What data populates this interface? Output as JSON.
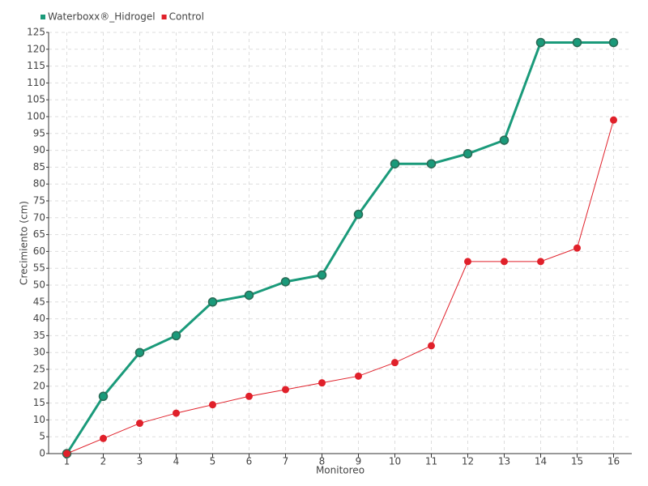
{
  "chart_data": {
    "type": "line",
    "x_label": "Monitoreo",
    "y_label": "Crecimiento (cm)",
    "categories": [
      "1",
      "2",
      "3",
      "4",
      "5",
      "6",
      "7",
      "8",
      "9",
      "10",
      "11",
      "12",
      "13",
      "14",
      "15",
      "16"
    ],
    "series": [
      {
        "name": "Waterboxx®_Hidrogel",
        "color": "#1a9a7a",
        "values": [
          0,
          17,
          30,
          35,
          45,
          47,
          51,
          53,
          71,
          86,
          86,
          89,
          93,
          122,
          122,
          122
        ]
      },
      {
        "name": "Control",
        "color": "#e0202a",
        "values": [
          0,
          4.5,
          9,
          12,
          14.5,
          17,
          19,
          21,
          23,
          27,
          32,
          57,
          57,
          57,
          61,
          99
        ]
      }
    ],
    "ylim": [
      0,
      125
    ],
    "yticks": [
      0,
      5,
      10,
      15,
      20,
      25,
      30,
      35,
      40,
      45,
      50,
      55,
      60,
      65,
      70,
      75,
      80,
      85,
      90,
      95,
      100,
      105,
      110,
      115,
      120,
      125
    ],
    "grid": true,
    "legend": "top-left"
  }
}
